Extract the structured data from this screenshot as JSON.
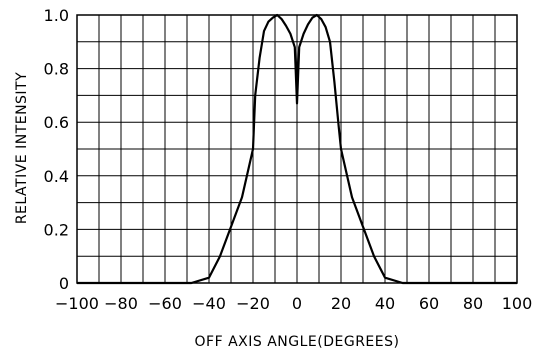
{
  "chart_data": {
    "type": "line",
    "title": "",
    "xlabel": "OFF AXIS ANGLE(DEGREES)",
    "ylabel": "RELATIVE INTENSITY",
    "xlim": [
      -100,
      100
    ],
    "ylim": [
      0,
      1.0
    ],
    "x_ticks": [
      -100,
      -80,
      -60,
      -40,
      -20,
      0,
      20,
      40,
      60,
      80,
      100
    ],
    "x_tick_labels": [
      "−100",
      "−80",
      "−60",
      "−40",
      "−20",
      "0",
      "20",
      "40",
      "60",
      "80",
      "100"
    ],
    "y_ticks": [
      0,
      0.2,
      0.4,
      0.6,
      0.8,
      1.0
    ],
    "y_tick_labels": [
      "0",
      "0.2",
      "0.4",
      "0.6",
      "0.8",
      "1.0"
    ],
    "grid": true,
    "grid_step_x": 10,
    "grid_step_y": 0.1,
    "line_color": "#000000",
    "grid_color": "#000000",
    "series": [
      {
        "x": [
          -100,
          -48,
          -40,
          -35,
          -30,
          -25,
          -20,
          -19,
          -17,
          -15,
          -13,
          -11,
          -9,
          -7,
          -5,
          -3,
          -1,
          0,
          1,
          3,
          5,
          7,
          9,
          11,
          13,
          15,
          17,
          19,
          20,
          25,
          30,
          35,
          40,
          48,
          100
        ],
        "y": [
          0,
          0,
          0.02,
          0.1,
          0.21,
          0.32,
          0.5,
          0.7,
          0.84,
          0.94,
          0.975,
          0.99,
          1.0,
          0.985,
          0.96,
          0.93,
          0.88,
          0.67,
          0.88,
          0.93,
          0.965,
          0.99,
          1.0,
          0.985,
          0.955,
          0.9,
          0.75,
          0.58,
          0.5,
          0.32,
          0.21,
          0.1,
          0.02,
          0,
          0
        ]
      }
    ]
  }
}
